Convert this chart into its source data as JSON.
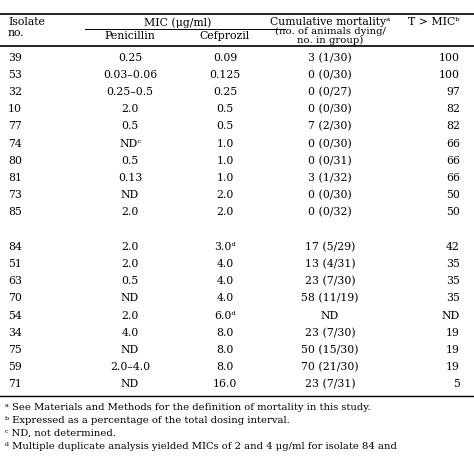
{
  "rows": [
    [
      "39",
      "0.25",
      "0.09",
      "3 (1/30)",
      "100"
    ],
    [
      "53",
      "0.03–0.06",
      "0.125",
      "0 (0/30)",
      "100"
    ],
    [
      "32",
      "0.25–0.5",
      "0.25",
      "0 (0/27)",
      "97"
    ],
    [
      "10",
      "2.0",
      "0.5",
      "0 (0/30)",
      "82"
    ],
    [
      "77",
      "0.5",
      "0.5",
      "7 (2/30)",
      "82"
    ],
    [
      "74",
      "NDᶜ",
      "1.0",
      "0 (0/30)",
      "66"
    ],
    [
      "80",
      "0.5",
      "1.0",
      "0 (0/31)",
      "66"
    ],
    [
      "81",
      "0.13",
      "1.0",
      "3 (1/32)",
      "66"
    ],
    [
      "73",
      "ND",
      "2.0",
      "0 (0/30)",
      "50"
    ],
    [
      "85",
      "2.0",
      "2.0",
      "0 (0/32)",
      "50"
    ],
    [
      "",
      "",
      "",
      "",
      ""
    ],
    [
      "84",
      "2.0",
      "3.0ᵈ",
      "17 (5/29)",
      "42"
    ],
    [
      "51",
      "2.0",
      "4.0",
      "13 (4/31)",
      "35"
    ],
    [
      "63",
      "0.5",
      "4.0",
      "23 (7/30)",
      "35"
    ],
    [
      "70",
      "ND",
      "4.0",
      "58 (11/19)",
      "35"
    ],
    [
      "54",
      "2.0",
      "6.0ᵈ",
      "ND",
      "ND"
    ],
    [
      "34",
      "4.0",
      "8.0",
      "23 (7/30)",
      "19"
    ],
    [
      "75",
      "ND",
      "8.0",
      "50 (15/30)",
      "19"
    ],
    [
      "59",
      "2.0–4.0",
      "8.0",
      "70 (21/30)",
      "19"
    ],
    [
      "71",
      "ND",
      "16.0",
      "23 (7/31)",
      "5"
    ]
  ],
  "footnotes": [
    "ᵃ See Materials and Methods for the definition of mortality in this study.",
    "ᵇ Expressed as a percentage of the total dosing interval.",
    "ᶜ ND, not determined.",
    "ᵈ Multiple duplicate analysis yielded MICs of 2 and 4 μg/ml for isolate 84 and"
  ],
  "background_color": "#ffffff",
  "text_color": "#000000",
  "line_color": "#000000",
  "font_size": 7.8,
  "footnote_font_size": 7.2
}
